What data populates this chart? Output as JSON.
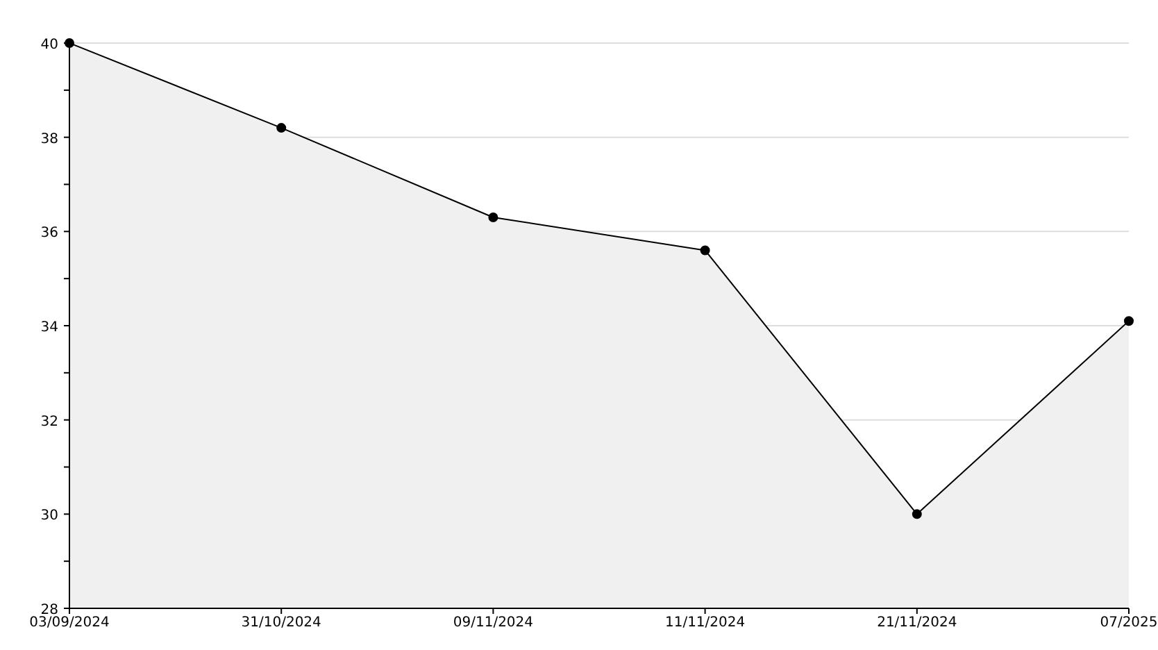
{
  "chart_data": {
    "type": "area",
    "categories": [
      "03/09/2024",
      "31/10/2024",
      "09/11/2024",
      "11/11/2024",
      "21/11/2024",
      "07/2025"
    ],
    "series": [
      {
        "color": "#000000",
        "values": [
          40,
          38.2,
          36.3,
          35.6,
          30,
          34.1
        ]
      }
    ],
    "ylim": [
      28,
      40
    ],
    "yticks": [
      28,
      {
        "value": 29,
        "label": null
      },
      30,
      {
        "value": 31,
        "label": null
      },
      32,
      {
        "value": 33,
        "label": null
      },
      34,
      {
        "value": 35,
        "label": null
      },
      36,
      {
        "value": 37,
        "label": null
      },
      38,
      {
        "value": 39,
        "label": null
      },
      40
    ],
    "grid": "y",
    "marker": "circle",
    "legend": false
  }
}
